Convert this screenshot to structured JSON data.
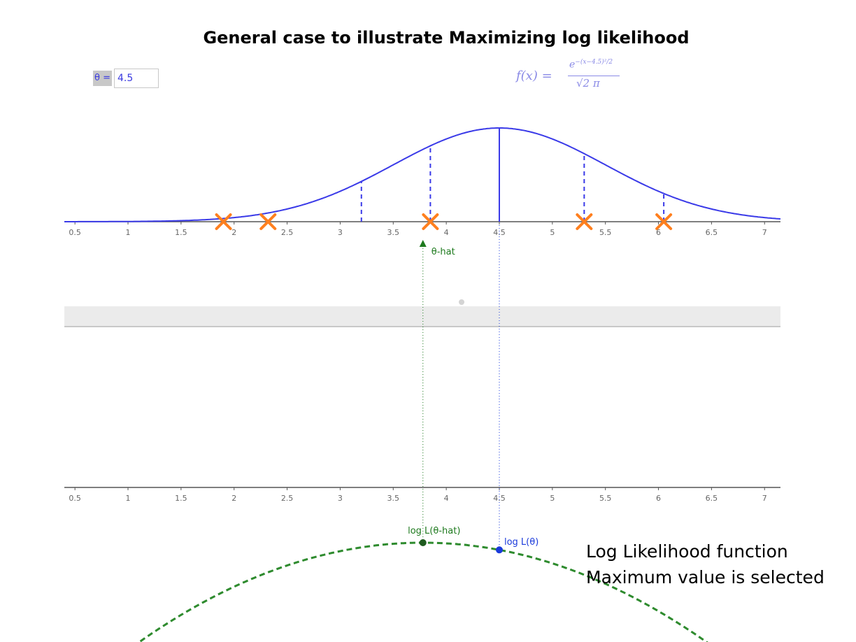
{
  "title": "General case to illustrate Maximizing log likelihood",
  "theta_input": {
    "label": "θ =",
    "value": "4.5"
  },
  "formula": {
    "lhs": "f(x) =",
    "numerator_base": "e",
    "numerator_exponent": "−(x−4.5)²/2",
    "denominator": "√2 π"
  },
  "axis": {
    "xmin": 0.4,
    "xmax": 7.15,
    "ticks": [
      0.5,
      1,
      1.5,
      2,
      2.5,
      3,
      3.5,
      4,
      4.5,
      5,
      5.5,
      6,
      6.5,
      7
    ],
    "tick_labels": [
      "0.5",
      "1",
      "1.5",
      "2",
      "2.5",
      "3",
      "3.5",
      "4",
      "4.5",
      "5",
      "5.5",
      "6",
      "6.5",
      "7"
    ]
  },
  "chart_data": {
    "type": "line",
    "theta": 4.5,
    "density_mean": 4.5,
    "density_sd": 1,
    "samples": [
      1.9,
      2.32,
      3.85,
      5.3,
      6.05
    ],
    "dashed_verticals_x": [
      3.2,
      3.85,
      5.3,
      6.05
    ],
    "theta_hat": 3.78,
    "colors": {
      "density": "#3a3ae8",
      "samples": "#ff7f1e",
      "theta_hat": "#1e7a1e",
      "log_likelihood": "#2e8b2e",
      "log_theta_point": "#1a3adb"
    }
  },
  "labels": {
    "theta_hat": "θ-hat",
    "log_L_theta_hat": "log L(θ-hat)",
    "log_L_theta": "log L(θ)"
  },
  "note": {
    "line1": "Log Likelihood function",
    "line2": "Maximum value is selected"
  }
}
